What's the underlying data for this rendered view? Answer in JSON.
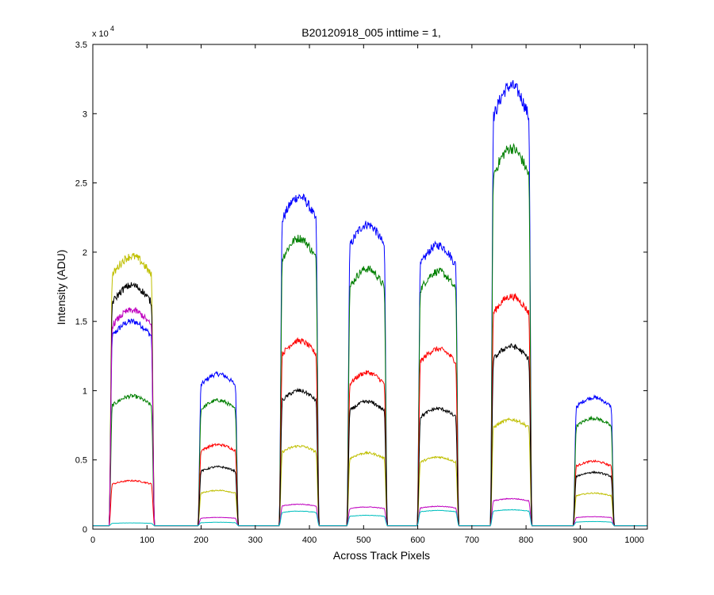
{
  "chart_data": {
    "type": "line",
    "title": "B20120918_005 inttime = 1,",
    "xlabel": "Across Track Pixels",
    "ylabel": "Intensity (ADU)",
    "xlim": [
      0,
      1024
    ],
    "ylim": [
      0,
      35000
    ],
    "xticks": [
      0,
      100,
      200,
      300,
      400,
      500,
      600,
      700,
      800,
      900,
      1000
    ],
    "yticks": [
      0,
      0.5,
      1,
      1.5,
      2,
      2.5,
      3,
      3.5
    ],
    "ytick_labels": [
      "0",
      "0.5",
      "1",
      "1.5",
      "2",
      "2.5",
      "3",
      "3.5"
    ],
    "y_multiplier": "x 10",
    "y_multiplier_exponent": "4",
    "grid": false,
    "baseline": 250,
    "channels": [
      {
        "start": 36,
        "end": 108
      },
      {
        "start": 200,
        "end": 263
      },
      {
        "start": 350,
        "end": 412
      },
      {
        "start": 475,
        "end": 538
      },
      {
        "start": 605,
        "end": 670
      },
      {
        "start": 740,
        "end": 805
      },
      {
        "start": 893,
        "end": 957
      }
    ],
    "series": [
      {
        "color": "#0000ff",
        "plateaus": [
          15000,
          11200,
          24000,
          22000,
          20500,
          32000,
          9500
        ]
      },
      {
        "color": "#007f00",
        "plateaus": [
          9600,
          9300,
          21000,
          18800,
          18600,
          27500,
          8000
        ]
      },
      {
        "color": "#ff0000",
        "plateaus": [
          3500,
          6100,
          13600,
          11300,
          13000,
          16800,
          4900
        ]
      },
      {
        "color": "#bfbf00",
        "plateaus": [
          19700,
          2800,
          6000,
          5500,
          5200,
          7900,
          2600
        ]
      },
      {
        "color": "#000000",
        "plateaus": [
          17600,
          4500,
          10000,
          9200,
          8700,
          13200,
          4100
        ]
      },
      {
        "color": "#bf00bf",
        "plateaus": [
          15800,
          850,
          1800,
          1600,
          1650,
          2200,
          900
        ]
      },
      {
        "color": "#00bfbf",
        "plateaus": [
          450,
          500,
          1300,
          1000,
          1350,
          1400,
          550
        ]
      }
    ]
  }
}
